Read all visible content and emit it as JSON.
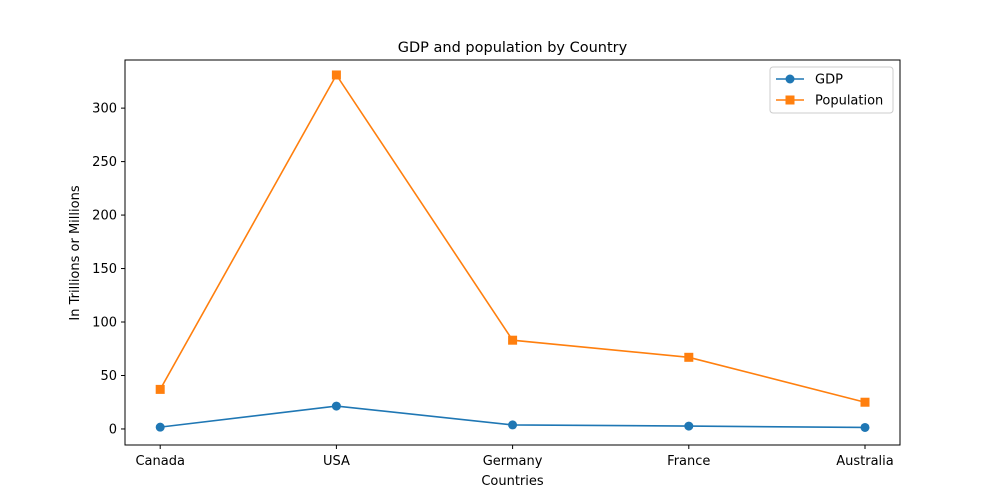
{
  "chart_data": {
    "type": "line",
    "title": "GDP and population by Country",
    "xlabel": "Countries",
    "ylabel": "In Trillions or Millions",
    "categories": [
      "Canada",
      "USA",
      "Germany",
      "France",
      "Australia"
    ],
    "ylim": [
      -15,
      345
    ],
    "yticks": [
      0,
      50,
      100,
      150,
      200,
      250,
      300
    ],
    "grid": false,
    "legend_position": "top-right",
    "series": [
      {
        "name": "GDP",
        "values": [
          1.7,
          21.4,
          3.8,
          2.7,
          1.4
        ],
        "color": "#1f77b4",
        "marker": "circle"
      },
      {
        "name": "Population",
        "values": [
          37,
          331,
          83,
          67,
          25
        ],
        "color": "#ff7f0e",
        "marker": "square"
      }
    ]
  }
}
